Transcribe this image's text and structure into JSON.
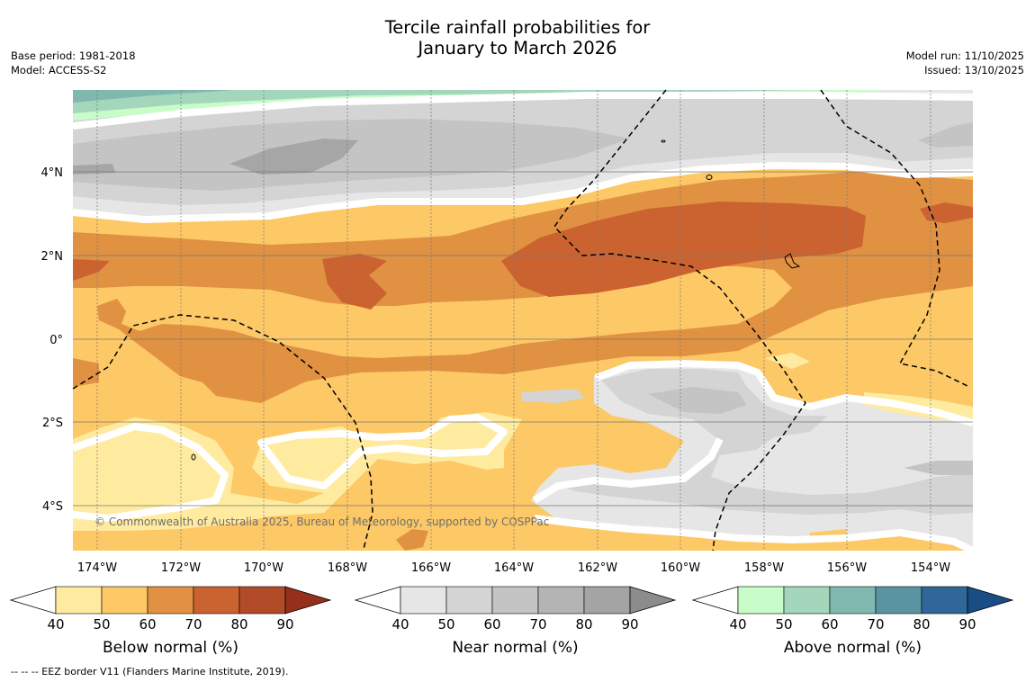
{
  "title": {
    "line1": "Tercile rainfall probabilities for",
    "line2": "January to March 2026"
  },
  "meta_left": {
    "base_period": "Base period: 1981-2018",
    "model": "Model: ACCESS-S2"
  },
  "meta_right": {
    "model_run": "Model run: 11/10/2025",
    "issued": "Issued: 13/10/2025"
  },
  "map": {
    "longitude_labels": [
      "174°W",
      "172°W",
      "170°W",
      "168°W",
      "166°W",
      "164°W",
      "162°W",
      "160°W",
      "158°W",
      "156°W",
      "154°W"
    ],
    "latitude_labels": [
      "4°N",
      "2°N",
      "0°",
      "2°S",
      "4°S"
    ],
    "copyright": "© Commonwealth of Australia 2025, Bureau of Meteorology, supported by COSPPac"
  },
  "legends": [
    {
      "label": "Below normal (%)",
      "ticks": [
        "40",
        "50",
        "60",
        "70",
        "80",
        "90"
      ],
      "colors": [
        "#ffffff",
        "#ffeba0",
        "#fdc866",
        "#e09142",
        "#cb6331",
        "#b24c28",
        "#95301c"
      ]
    },
    {
      "label": "Near normal (%)",
      "ticks": [
        "40",
        "50",
        "60",
        "70",
        "80",
        "90"
      ],
      "colors": [
        "#ffffff",
        "#e6e6e6",
        "#d4d4d4",
        "#c4c4c4",
        "#b4b4b4",
        "#a4a4a4",
        "#8c8c8c"
      ]
    },
    {
      "label": "Above normal (%)",
      "ticks": [
        "40",
        "50",
        "60",
        "70",
        "80",
        "90"
      ],
      "colors": [
        "#ffffff",
        "#c8fcc8",
        "#a4d6bc",
        "#80b8b0",
        "#5a94a0",
        "#306698",
        "#184e84"
      ]
    }
  ],
  "footnote": "--  --  -- EEZ border V11 (Flanders Marine Institute, 2019).",
  "palette": {
    "below_50": "#ffeba0",
    "below_60": "#fdc866",
    "below_70": "#e09142",
    "below_80": "#cb6331",
    "below_90": "#b24c28",
    "near_50": "#e6e6e6",
    "near_60": "#d4d4d4",
    "near_70": "#c4c4c4",
    "near_80": "#a6a6a6",
    "above_50": "#c8fcc8",
    "above_60": "#a4d6bc",
    "above_70": "#80b8b0"
  }
}
